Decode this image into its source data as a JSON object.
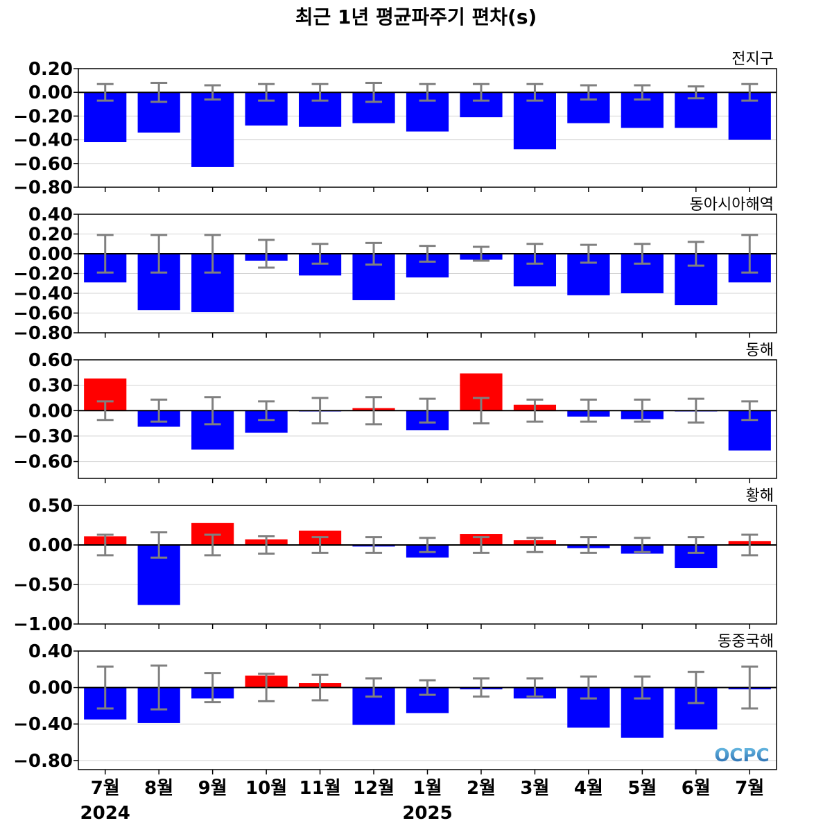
{
  "chart_data": {
    "type": "bar",
    "title": "최근 1년 평균파주기 편차(s)",
    "categories": [
      "7월",
      "8월",
      "9월",
      "10월",
      "11월",
      "12월",
      "1월",
      "2월",
      "3월",
      "4월",
      "5월",
      "6월",
      "7월"
    ],
    "year_labels": [
      {
        "text": "2024",
        "category_index": 0
      },
      {
        "text": "2025",
        "category_index": 6
      }
    ],
    "logo_text": "OCPC",
    "colors": {
      "positive": "#ff0000",
      "negative": "#0000ff",
      "error_bar": "#808080",
      "zero_line": "#000000",
      "grid": "#d3d3d3"
    },
    "panels": [
      {
        "name": "전지구",
        "ylim": [
          -0.8,
          0.2
        ],
        "yticks": [
          0.2,
          0.0,
          -0.2,
          -0.4,
          -0.6,
          -0.8
        ],
        "ytick_labels": [
          "0.20",
          "0.00",
          "−0.20",
          "−0.40",
          "−0.60",
          "−0.80"
        ],
        "values": [
          -0.42,
          -0.34,
          -0.63,
          -0.28,
          -0.29,
          -0.26,
          -0.33,
          -0.21,
          -0.48,
          -0.26,
          -0.3,
          -0.3,
          -0.4
        ],
        "errors": [
          0.07,
          0.08,
          0.06,
          0.07,
          0.07,
          0.08,
          0.07,
          0.07,
          0.07,
          0.06,
          0.06,
          0.05,
          0.07
        ]
      },
      {
        "name": "동아시아해역",
        "ylim": [
          -0.8,
          0.4
        ],
        "yticks": [
          0.4,
          0.2,
          0.0,
          -0.2,
          -0.4,
          -0.6,
          -0.8
        ],
        "ytick_labels": [
          "0.40",
          "0.20",
          "0.00",
          "−0.20",
          "−0.40",
          "−0.60",
          "−0.80"
        ],
        "values": [
          -0.29,
          -0.57,
          -0.59,
          -0.07,
          -0.22,
          -0.47,
          -0.24,
          -0.06,
          -0.33,
          -0.42,
          -0.4,
          -0.52,
          -0.29
        ],
        "errors": [
          0.19,
          0.19,
          0.19,
          0.14,
          0.1,
          0.11,
          0.08,
          0.07,
          0.1,
          0.09,
          0.1,
          0.12,
          0.19
        ]
      },
      {
        "name": "동해",
        "ylim": [
          -0.8,
          0.6
        ],
        "yticks": [
          0.6,
          0.3,
          0.0,
          -0.3,
          -0.6
        ],
        "ytick_labels": [
          "0.60",
          "0.30",
          "0.00",
          "−0.30",
          "−0.60"
        ],
        "values": [
          0.38,
          -0.19,
          -0.46,
          -0.26,
          -0.01,
          0.03,
          -0.23,
          0.44,
          0.07,
          -0.07,
          -0.1,
          -0.01,
          -0.47
        ],
        "errors": [
          0.11,
          0.13,
          0.16,
          0.11,
          0.15,
          0.16,
          0.14,
          0.15,
          0.13,
          0.13,
          0.13,
          0.14,
          0.11
        ]
      },
      {
        "name": "황해",
        "ylim": [
          -1.0,
          0.5
        ],
        "yticks": [
          0.5,
          0.0,
          -0.5,
          -1.0
        ],
        "ytick_labels": [
          "0.50",
          "0.00",
          "−0.50",
          "−1.00"
        ],
        "values": [
          0.11,
          -0.76,
          0.28,
          0.07,
          0.18,
          -0.02,
          -0.16,
          0.14,
          0.06,
          -0.04,
          -0.11,
          -0.29,
          0.05
        ],
        "errors": [
          0.13,
          0.16,
          0.13,
          0.11,
          0.1,
          0.1,
          0.09,
          0.1,
          0.09,
          0.1,
          0.09,
          0.1,
          0.13
        ]
      },
      {
        "name": "동중국해",
        "ylim": [
          -0.9,
          0.4
        ],
        "yticks": [
          0.4,
          0.0,
          -0.4,
          -0.8
        ],
        "ytick_labels": [
          "0.40",
          "0.00",
          "−0.40",
          "−0.80"
        ],
        "values": [
          -0.35,
          -0.39,
          -0.12,
          0.13,
          0.05,
          -0.41,
          -0.28,
          -0.02,
          -0.12,
          -0.44,
          -0.55,
          -0.46,
          -0.02
        ],
        "errors": [
          0.23,
          0.24,
          0.16,
          0.15,
          0.14,
          0.1,
          0.08,
          0.1,
          0.1,
          0.12,
          0.12,
          0.17,
          0.23
        ]
      }
    ]
  }
}
